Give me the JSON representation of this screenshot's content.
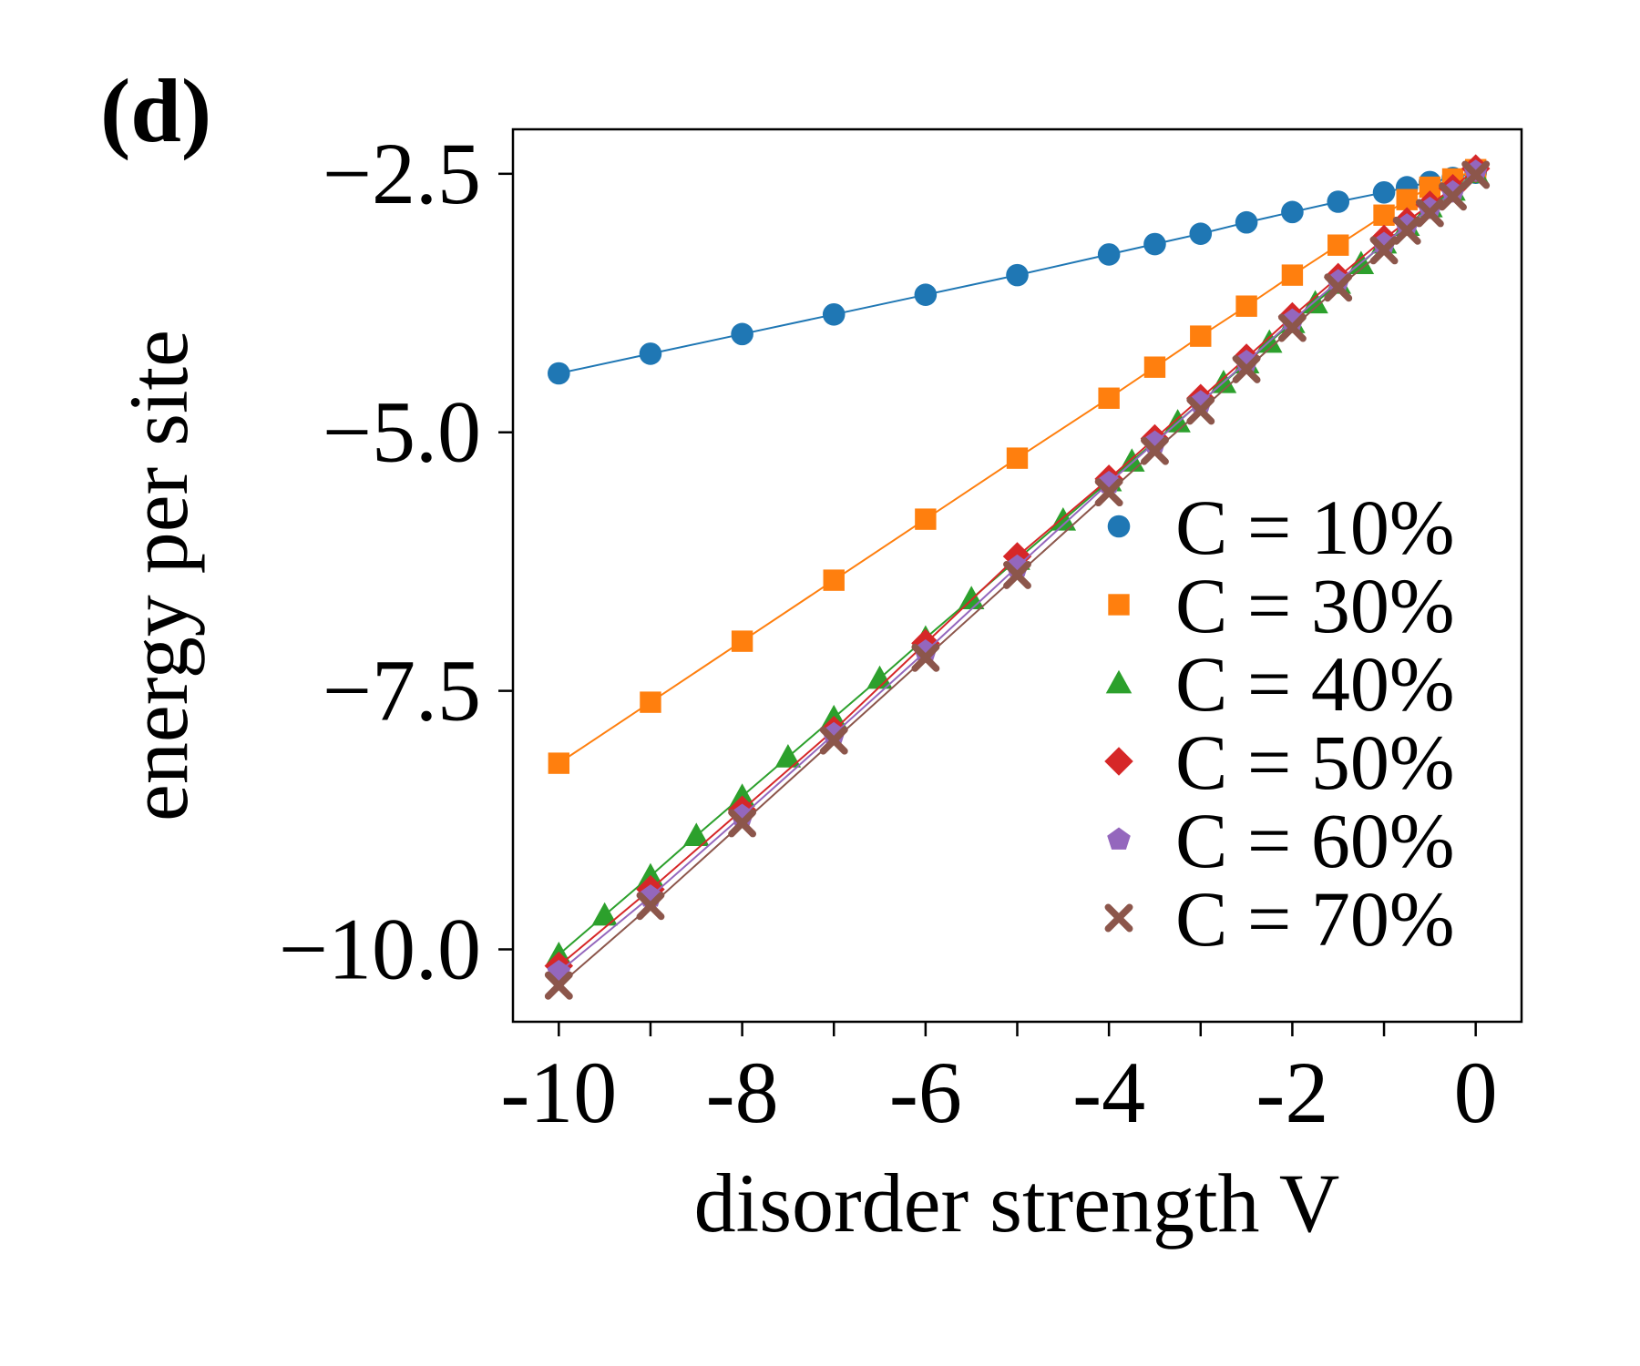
{
  "panel_label": "(d)",
  "chart_data": {
    "type": "line",
    "title": "",
    "xlabel": "disorder strength V",
    "ylabel": "energy per site",
    "xlim": [
      -10.5,
      0.5
    ],
    "ylim": [
      -10.7,
      -2.07
    ],
    "xticks": [
      -10,
      -8,
      -6,
      -4,
      -2,
      0
    ],
    "xtick_labels": [
      "-10",
      "-8",
      "-6",
      "-4",
      "-2",
      "0"
    ],
    "yticks": [
      -10.0,
      -7.5,
      -5.0,
      -2.5
    ],
    "ytick_labels": [
      "−10.0",
      "−7.5",
      "−5.0",
      "−2.5"
    ],
    "grid": false,
    "legend_position": "lower-right",
    "series": [
      {
        "name": "C = 10%",
        "marker": "circle",
        "color": "#1f77b4",
        "x": [
          -10,
          -9,
          -8,
          -7,
          -6,
          -5,
          -4,
          -3.5,
          -3,
          -2.5,
          -2,
          -1.5,
          -1,
          -0.75,
          -0.5,
          -0.25,
          0
        ],
        "y": [
          -4.43,
          -4.24,
          -4.05,
          -3.86,
          -3.67,
          -3.48,
          -3.28,
          -3.18,
          -3.08,
          -2.97,
          -2.87,
          -2.77,
          -2.68,
          -2.63,
          -2.58,
          -2.54,
          -2.49
        ]
      },
      {
        "name": "C = 30%",
        "marker": "square",
        "color": "#ff7f0e",
        "x": [
          -10,
          -9,
          -8,
          -7,
          -6,
          -5,
          -4,
          -3.5,
          -3,
          -2.5,
          -2,
          -1.5,
          -1,
          -0.75,
          -0.5,
          -0.25,
          0
        ],
        "y": [
          -8.2,
          -7.61,
          -7.02,
          -6.43,
          -5.84,
          -5.25,
          -4.67,
          -4.37,
          -4.07,
          -3.78,
          -3.48,
          -3.19,
          -2.9,
          -2.75,
          -2.63,
          -2.55,
          -2.46
        ]
      },
      {
        "name": "C = 40%",
        "marker": "triangle",
        "color": "#2ca02c",
        "x": [
          -10,
          -9.5,
          -9,
          -8.5,
          -8,
          -7.5,
          -7,
          -6.5,
          -6,
          -5.5,
          -5,
          -4.5,
          -4,
          -3.75,
          -3.25,
          -2.75,
          -2.5,
          -2.25,
          -2,
          -1.75,
          -1.5,
          -1.25,
          -1,
          -0.75,
          -0.5,
          -0.25,
          0
        ],
        "y": [
          -10.05,
          -9.67,
          -9.29,
          -8.9,
          -8.52,
          -8.14,
          -7.76,
          -7.38,
          -6.99,
          -6.61,
          -6.23,
          -5.85,
          -5.47,
          -5.28,
          -4.9,
          -4.52,
          -4.33,
          -4.13,
          -3.94,
          -3.75,
          -3.56,
          -3.37,
          -3.17,
          -3.0,
          -2.82,
          -2.66,
          -2.49
        ]
      },
      {
        "name": "C = 50%",
        "marker": "diamond",
        "color": "#d62728",
        "x": [
          -10,
          -9,
          -8,
          -7,
          -6,
          -5,
          -4,
          -3.5,
          -3,
          -2.5,
          -2,
          -1.5,
          -1,
          -0.75,
          -0.5,
          -0.25,
          0
        ],
        "y": [
          -10.16,
          -9.42,
          -8.65,
          -7.88,
          -7.04,
          -6.2,
          -5.45,
          -5.06,
          -4.67,
          -4.28,
          -3.88,
          -3.5,
          -3.13,
          -2.96,
          -2.8,
          -2.64,
          -2.45
        ]
      },
      {
        "name": "C = 60%",
        "marker": "pentagon",
        "color": "#9467bd",
        "x": [
          -10,
          -9,
          -8,
          -7,
          -6,
          -5,
          -4,
          -3.5,
          -3,
          -2.5,
          -2,
          -1.5,
          -1,
          -0.75,
          -0.5,
          -0.25,
          0
        ],
        "y": [
          -10.22,
          -9.49,
          -8.71,
          -7.92,
          -7.12,
          -6.3,
          -5.49,
          -5.1,
          -4.71,
          -4.32,
          -3.92,
          -3.54,
          -3.18,
          -3.0,
          -2.84,
          -2.68,
          -2.48
        ]
      },
      {
        "name": "C = 70%",
        "marker": "x",
        "color": "#8c564b",
        "x": [
          -10,
          -9,
          -8,
          -7,
          -6,
          -5,
          -4,
          -3.5,
          -3,
          -2.5,
          -2,
          -1.5,
          -1,
          -0.75,
          -0.5,
          -0.25,
          0
        ],
        "y": [
          -10.35,
          -9.58,
          -8.78,
          -7.98,
          -7.18,
          -6.38,
          -5.58,
          -5.18,
          -4.79,
          -4.39,
          -3.99,
          -3.6,
          -3.24,
          -3.05,
          -2.88,
          -2.72,
          -2.51
        ]
      }
    ]
  }
}
